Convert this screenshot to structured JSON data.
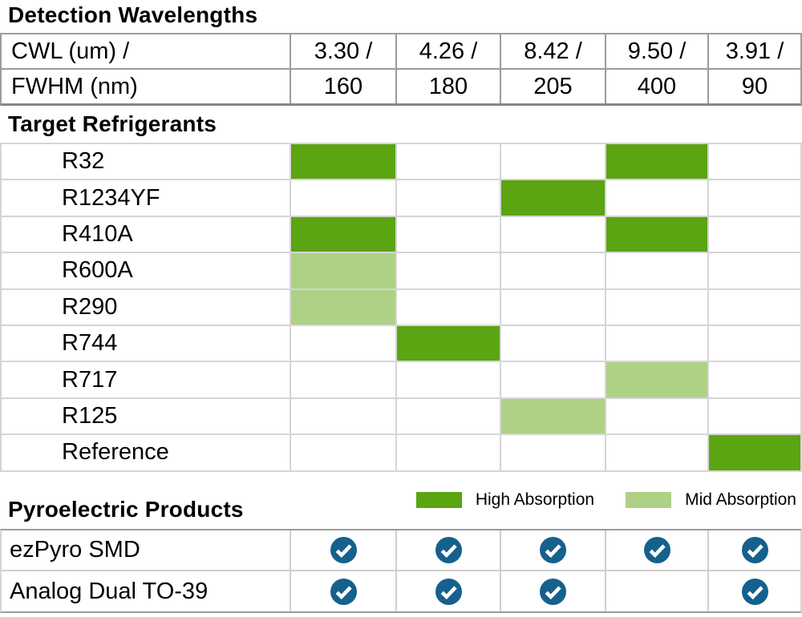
{
  "colors": {
    "high": "#5ba412",
    "mid": "#aed185",
    "check": "#15608c",
    "border_gray": "#9c9c9c",
    "border_dark": "#878787",
    "grid_light": "#d5d5d5",
    "row_light": "#cfcfcf"
  },
  "sections": {
    "wavelengths_title": "Detection Wavelengths",
    "refrigerants_title": "Target Refrigerants",
    "products_title": "Pyroelectric Products"
  },
  "header_table": {
    "row1_label": "CWL (um) /",
    "row2_label": "FWHM (nm)",
    "cwl": [
      "3.30 /",
      "4.26 /",
      "8.42 /",
      "9.50 /",
      "3.91 /"
    ],
    "fwhm": [
      "160",
      "180",
      "205",
      "400",
      "90"
    ]
  },
  "refrigerant_matrix": {
    "rows": [
      {
        "label": "R32",
        "cells": [
          "high",
          "",
          "",
          "high",
          ""
        ]
      },
      {
        "label": "R1234YF",
        "cells": [
          "",
          "",
          "high",
          "",
          ""
        ]
      },
      {
        "label": "R410A",
        "cells": [
          "high",
          "",
          "",
          "high",
          ""
        ]
      },
      {
        "label": "R600A",
        "cells": [
          "mid",
          "",
          "",
          "",
          ""
        ]
      },
      {
        "label": "R290",
        "cells": [
          "mid",
          "",
          "",
          "",
          ""
        ]
      },
      {
        "label": "R744",
        "cells": [
          "",
          "high",
          "",
          "",
          ""
        ]
      },
      {
        "label": "R717",
        "cells": [
          "",
          "",
          "",
          "mid",
          ""
        ]
      },
      {
        "label": "R125",
        "cells": [
          "",
          "",
          "mid",
          "",
          ""
        ]
      },
      {
        "label": "Reference",
        "cells": [
          "",
          "",
          "",
          "",
          "high"
        ]
      }
    ]
  },
  "legend": [
    {
      "level": "high",
      "label": "High Absorption"
    },
    {
      "level": "mid",
      "label": "Mid Absorption"
    }
  ],
  "products": [
    {
      "label": "ezPyro SMD",
      "checks": [
        true,
        true,
        true,
        true,
        true
      ]
    },
    {
      "label": "Analog Dual TO-39",
      "checks": [
        true,
        true,
        true,
        false,
        true
      ]
    }
  ],
  "chart_data": {
    "type": "heatmap",
    "title": "Detection Wavelengths",
    "x_cwl_um": [
      3.3,
      4.26,
      8.42,
      9.5,
      3.91
    ],
    "x_fwhm_nm": [
      160,
      180,
      205,
      400,
      90
    ],
    "y_rows": [
      "R32",
      "R1234YF",
      "R410A",
      "R600A",
      "R290",
      "R744",
      "R717",
      "R125",
      "Reference"
    ],
    "values": [
      [
        "high",
        null,
        null,
        "high",
        null
      ],
      [
        null,
        null,
        "high",
        null,
        null
      ],
      [
        "high",
        null,
        null,
        "high",
        null
      ],
      [
        "mid",
        null,
        null,
        null,
        null
      ],
      [
        "mid",
        null,
        null,
        null,
        null
      ],
      [
        null,
        "high",
        null,
        null,
        null
      ],
      [
        null,
        null,
        null,
        "mid",
        null
      ],
      [
        null,
        null,
        "mid",
        null,
        null
      ],
      [
        null,
        null,
        null,
        null,
        "high"
      ]
    ],
    "legend_entries": [
      "High Absorption",
      "Mid Absorption"
    ],
    "legend_position": "bottom-right",
    "products_table": {
      "type": "table",
      "title": "Pyroelectric Products",
      "rows": [
        "ezPyro SMD",
        "Analog Dual TO-39"
      ],
      "checks": [
        [
          true,
          true,
          true,
          true,
          true
        ],
        [
          true,
          true,
          true,
          false,
          true
        ]
      ]
    }
  }
}
